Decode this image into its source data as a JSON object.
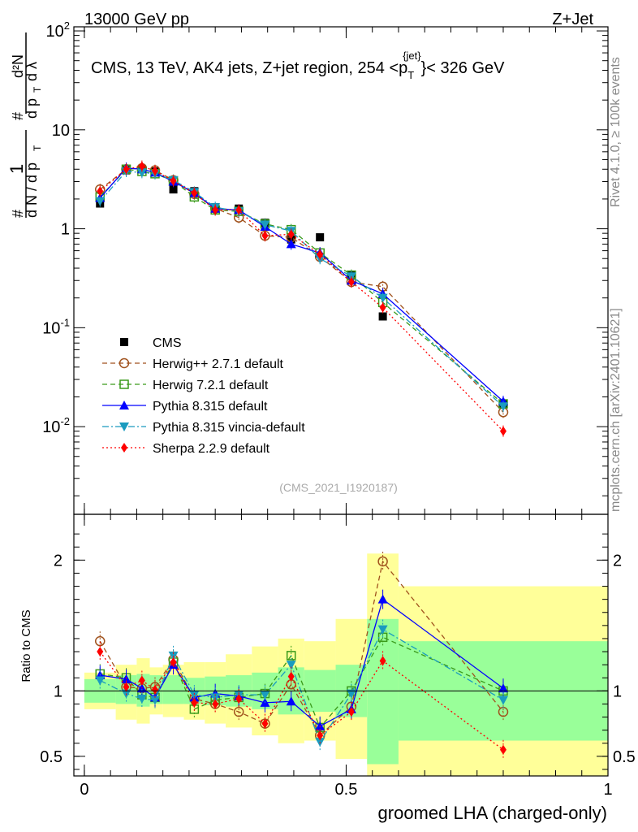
{
  "header": {
    "energy_label": "13000 GeV pp",
    "process_label": "Z+Jet"
  },
  "side_labels": {
    "rivet": "Rivet 4.1.0, ≥ 100k events",
    "mcplots": "mcplots.cern.ch [arXiv:2401.10621]"
  },
  "plot_title": {
    "prefix": "CMS, 13 TeV, AK4 jets, Z+jet region, 254 <p",
    "sub": "T",
    "sup": "{jet}",
    "suffix": "}< 326 GeV"
  },
  "ylabel_main": "1/(dN/dpT) · d²N/(dpT dλ)",
  "analysis_tag": "(CMS_2021_I1920187)",
  "ratio_ylabel": "Ratio to CMS",
  "xlabel": "groomed LHA (charged-only)",
  "colors": {
    "data": "#000000",
    "herwigpp": "#a0521d",
    "herwig7": "#3a9a1a",
    "pythia": "#0000ff",
    "vincia": "#1a9bbf",
    "sherpa": "#ff0000",
    "band_inner": "#99ff99",
    "band_outer": "#ffff99"
  },
  "chart_data": {
    "type": "scatter",
    "x": [
      0.03,
      0.08,
      0.11,
      0.135,
      0.17,
      0.21,
      0.25,
      0.295,
      0.345,
      0.395,
      0.45,
      0.51,
      0.57,
      0.8
    ],
    "xlim": [
      -0.02,
      1.0
    ],
    "main_ylim": [
      0.0013,
      110
    ],
    "main_yscale": "log",
    "main_yticks": [
      "10^-2",
      "10^-1",
      "1",
      "10",
      "10^2"
    ],
    "ratio_ylim": [
      0.35,
      2.35
    ],
    "ratio_yticks": [
      "0.5",
      "1",
      "2"
    ],
    "xticks": [
      "0",
      "0.5",
      "1"
    ],
    "series": [
      {
        "name": "CMS",
        "key": "data",
        "marker": "square",
        "line": "none",
        "values": [
          1.8,
          3.9,
          4.0,
          3.8,
          2.5,
          2.4,
          1.65,
          1.6,
          1.15,
          0.78,
          0.82,
          0.34,
          0.13,
          0.017
        ],
        "ratio": [
          1,
          1,
          1,
          1,
          1,
          1,
          1,
          1,
          1,
          1,
          1,
          1,
          1,
          1
        ]
      },
      {
        "name": "Herwig++ 2.7.1 default",
        "key": "herwigpp",
        "marker": "open-circle",
        "line": "dashed",
        "values": [
          2.5,
          4.0,
          4.1,
          3.9,
          3.1,
          2.25,
          1.6,
          1.3,
          0.85,
          0.82,
          0.52,
          0.29,
          0.26,
          0.014
        ],
        "ratio": [
          1.38,
          1.03,
          1.02,
          1.03,
          1.24,
          0.94,
          0.9,
          0.84,
          0.75,
          1.05,
          0.66,
          0.88,
          1.99,
          0.84
        ]
      },
      {
        "name": "Herwig 7.2.1 default",
        "key": "herwig7",
        "marker": "open-square",
        "line": "dashed",
        "values": [
          2.1,
          4.0,
          3.8,
          3.6,
          3.05,
          2.1,
          1.55,
          1.5,
          1.12,
          0.98,
          0.57,
          0.34,
          0.18,
          0.017
        ],
        "ratio": [
          1.13,
          1.1,
          0.97,
          0.95,
          1.22,
          0.86,
          0.93,
          0.95,
          0.98,
          1.27,
          0.72,
          1.0,
          1.41,
          1.0
        ]
      },
      {
        "name": "Pythia 8.315 default",
        "key": "pythia",
        "marker": "triangle-up",
        "line": "solid",
        "values": [
          2.05,
          4.1,
          4.0,
          3.7,
          3.0,
          2.3,
          1.6,
          1.55,
          1.05,
          0.7,
          0.57,
          0.3,
          0.22,
          0.018
        ],
        "ratio": [
          1.12,
          1.09,
          1.02,
          0.95,
          1.2,
          0.95,
          0.98,
          0.96,
          0.91,
          0.92,
          0.73,
          0.86,
          1.7,
          1.02
        ]
      },
      {
        "name": "Pythia 8.315 vincia-default",
        "key": "vincia",
        "marker": "triangle-down",
        "line": "dashdot",
        "values": [
          1.9,
          3.8,
          3.7,
          3.6,
          3.1,
          2.35,
          1.65,
          1.5,
          1.1,
          0.95,
          0.5,
          0.33,
          0.2,
          0.016
        ],
        "ratio": [
          1.08,
          0.98,
          0.94,
          0.93,
          1.27,
          0.97,
          0.95,
          0.97,
          0.97,
          1.2,
          0.61,
          0.98,
          1.47,
          0.93
        ]
      },
      {
        "name": "Sherpa 2.2.9 default",
        "key": "sherpa",
        "marker": "diamond",
        "line": "dotted",
        "values": [
          2.4,
          4.0,
          4.3,
          3.85,
          3.05,
          2.3,
          1.55,
          1.55,
          0.85,
          0.88,
          0.55,
          0.29,
          0.16,
          0.009
        ],
        "ratio": [
          1.3,
          1.03,
          1.08,
          1.01,
          1.22,
          0.91,
          0.9,
          0.94,
          0.75,
          1.11,
          0.66,
          0.84,
          1.23,
          0.55
        ]
      }
    ],
    "bands": {
      "edges": [
        0.0,
        0.06,
        0.1,
        0.125,
        0.15,
        0.19,
        0.23,
        0.27,
        0.32,
        0.37,
        0.42,
        0.48,
        0.54,
        0.6,
        1.0
      ],
      "inner": [
        [
          0.91,
          1.09
        ],
        [
          0.9,
          1.12
        ],
        [
          0.88,
          1.13
        ],
        [
          0.9,
          1.12
        ],
        [
          0.9,
          1.12
        ],
        [
          0.9,
          1.1
        ],
        [
          0.89,
          1.11
        ],
        [
          0.88,
          1.12
        ],
        [
          0.86,
          1.14
        ],
        [
          0.82,
          1.18
        ],
        [
          0.84,
          1.16
        ],
        [
          0.8,
          1.2
        ],
        [
          0.44,
          1.55
        ],
        [
          0.62,
          1.38
        ]
      ],
      "outer": [
        [
          0.86,
          1.14
        ],
        [
          0.78,
          1.2
        ],
        [
          0.75,
          1.25
        ],
        [
          0.82,
          1.18
        ],
        [
          0.8,
          1.2
        ],
        [
          0.78,
          1.22
        ],
        [
          0.75,
          1.22
        ],
        [
          0.72,
          1.28
        ],
        [
          0.66,
          1.34
        ],
        [
          0.6,
          1.4
        ],
        [
          0.62,
          1.38
        ],
        [
          0.48,
          1.55
        ],
        [
          0.34,
          2.05
        ],
        [
          0.34,
          1.8
        ]
      ]
    }
  }
}
